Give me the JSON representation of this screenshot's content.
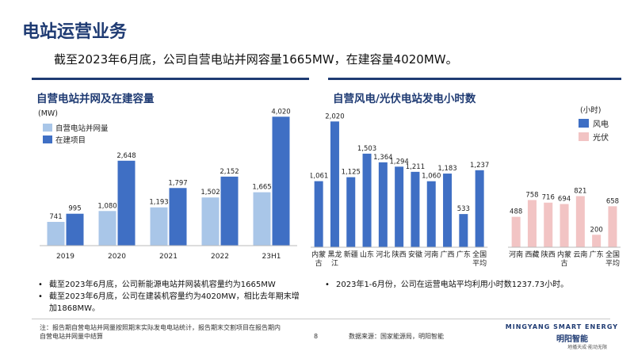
{
  "page_title": "电站运营业务",
  "headline": "截至2023年6月底，公司自营电站并网容量1665MW，在建容量4020MW。",
  "left_section_title": "自营电站并网及在建容量",
  "right_section_title": "自营风电/光伏电站发电小时数",
  "left_bullets": [
    "截至2023年6月底，公司新能源电站并网装机容量约为1665MW",
    "截至2023年6月底，公司在建装机容量约为4020MW，相比去年期末增加1868MW。"
  ],
  "right_bullets": [
    "2023年1-6月份，公司在运营电站平均利用小时数1237.73小时。"
  ],
  "footnote": "注：报告期自营电站并网量按照期末实际发电电站统计，报告期末交割项目在报告期内自营电站并网量中结算",
  "page_number": "8",
  "source": "数据来源：国家能源局，明阳智能",
  "logo": {
    "en": "MINGYANG SMART ENERGY",
    "cn": "明阳智能",
    "tagline": "地播天成·能动无限"
  },
  "colors": {
    "light_blue": "#a9c6e8",
    "blue": "#3f6fc4",
    "pink": "#f2c4c4",
    "title": "#1f3b73"
  },
  "chart_data": [
    {
      "type": "bar",
      "unit_label": "(MW)",
      "categories": [
        "2019",
        "2020",
        "2021",
        "2022",
        "23H1"
      ],
      "series": [
        {
          "name": "自营电站并网量",
          "values": [
            741,
            1080,
            1193,
            1502,
            1665
          ],
          "color": "#a9c6e8"
        },
        {
          "name": "在建项目",
          "values": [
            995,
            2648,
            1797,
            2152,
            4020
          ],
          "color": "#3f6fc4"
        }
      ],
      "ylim": [
        0,
        4200
      ],
      "grid": false,
      "legend": "top-left"
    },
    {
      "type": "bar",
      "unit_label": "(小时)",
      "groups": [
        {
          "name": "风电",
          "color": "#3f6fc4",
          "categories": [
            "内蒙古",
            "黑龙江",
            "新疆",
            "山东",
            "河北",
            "陕西",
            "安徽",
            "河南",
            "广西",
            "广东",
            "全国平均"
          ],
          "values": [
            1061,
            2020,
            1125,
            1503,
            1364,
            1294,
            1211,
            1060,
            1183,
            533,
            1237
          ]
        },
        {
          "name": "光伏",
          "color": "#f2c4c4",
          "categories": [
            "河南",
            "西藏",
            "陕西",
            "内蒙古",
            "云南",
            "广东",
            "全国平均"
          ],
          "values": [
            488,
            758,
            716,
            694,
            821,
            200,
            658
          ]
        }
      ],
      "ylim": [
        0,
        2100
      ],
      "grid": false,
      "legend": "top-right"
    }
  ]
}
